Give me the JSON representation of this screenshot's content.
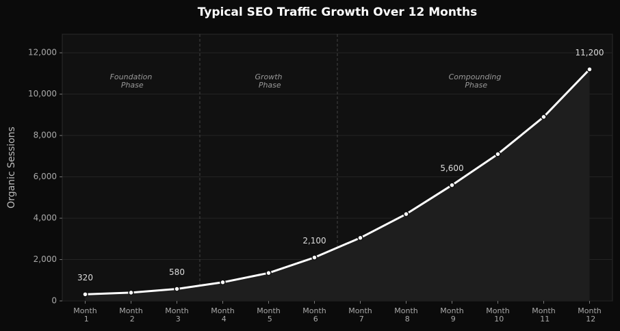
{
  "chart_data": {
    "type": "line",
    "title": "Typical SEO Traffic Growth Over 12 Months",
    "y_label": "Organic Sessions",
    "categories": [
      "Month 1",
      "Month 2",
      "Month 3",
      "Month 4",
      "Month 5",
      "Month 6",
      "Month 7",
      "Month 8",
      "Month 9",
      "Month 10",
      "Month 11",
      "Month 12"
    ],
    "series": [
      {
        "color": "#ffffff",
        "values": [
          320,
          400,
          580,
          900,
          1350,
          2100,
          3050,
          4200,
          5600,
          7100,
          8900,
          11200
        ],
        "value_labels": [
          "320",
          null,
          "580",
          null,
          null,
          "2,100",
          null,
          null,
          "5,600",
          null,
          null,
          "11,200"
        ]
      }
    ],
    "annotations": [
      "Foundation Phase",
      "Growth Phase",
      "Compounding Phase"
    ],
    "ylim": [
      0,
      12900
    ],
    "yticks": [
      0,
      {
        "value": 2000,
        "label": "2,000"
      },
      {
        "value": 4000,
        "label": "4,000"
      },
      {
        "value": 6000,
        "label": "6,000"
      },
      {
        "value": 8000,
        "label": "8,000"
      },
      {
        "value": 10000,
        "label": "10,000"
      },
      {
        "value": 12000,
        "label": "12,000"
      }
    ],
    "grid": true
  }
}
